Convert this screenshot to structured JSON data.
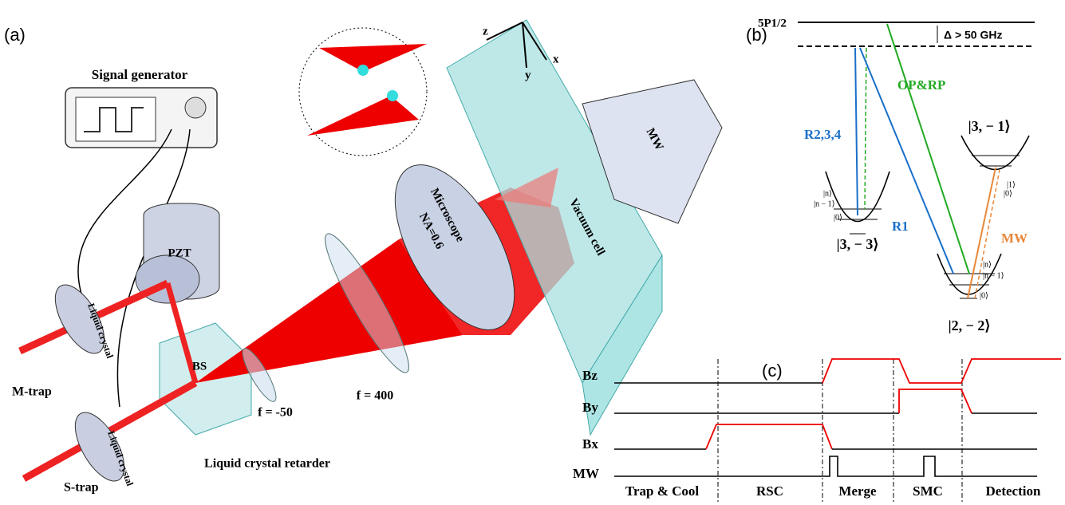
{
  "panel_a": {
    "label": "(a)",
    "signal_generator": "Signal generator",
    "pzt": "PZT",
    "m_trap": "M-trap",
    "s_trap": "S-trap",
    "liquid_crystal_m": "Liquid crystal",
    "liquid_crystal_s": "Liquid crystal",
    "bs": "BS",
    "lens_f1": "f = -50",
    "lens_f2": "f = 400",
    "retarder": "Liquid crystal retarder",
    "microscope": "Microscope",
    "na": "NA=0.6",
    "vacuum_cell": "Vacuum cell",
    "mw_horn": "MW",
    "axes": {
      "z": "z",
      "y": "y",
      "x": "x"
    }
  },
  "panel_b": {
    "label": "(b)",
    "excited_state": "5P1/2",
    "detuning": "Δ > 50 GHz",
    "op_rp": "OP&RP",
    "r234": "R2,3,4",
    "r1": "R1",
    "mw": "MW",
    "well_31": {
      "state": "|3, − 1⟩",
      "levels": [
        "|1⟩",
        "|0⟩"
      ]
    },
    "well_33": {
      "state": "|3, − 3⟩",
      "levels": [
        "|n⟩",
        "|n − 1⟩",
        "|0⟩"
      ]
    },
    "well_22": {
      "state": "|2, − 2⟩",
      "levels": [
        "|n⟩",
        "|n − 1⟩",
        "|0⟩"
      ]
    }
  },
  "panel_c": {
    "label": "(c)",
    "channels": [
      "Bz",
      "By",
      "Bx",
      "MW"
    ],
    "phases": [
      "Trap & Cool",
      "RSC",
      "Merge",
      "SMC",
      "Detection"
    ]
  }
}
